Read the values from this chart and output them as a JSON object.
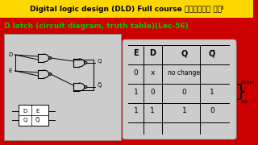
{
  "title_top": "Digital logic design (DLD) Full course తెలుగు లోᴶ",
  "title_top_bg": "#FFD700",
  "title_top_color": "#000000",
  "title_sub": "D latch (circuit diagram, truth table)(Lec-56)",
  "title_sub_color": "#00CC00",
  "bg_color": "#CC0000",
  "circuit_bg": "#CCCCCC",
  "truth_bg": "#CCCCCC",
  "reset_label": "Reset",
  "set_label": "Set"
}
